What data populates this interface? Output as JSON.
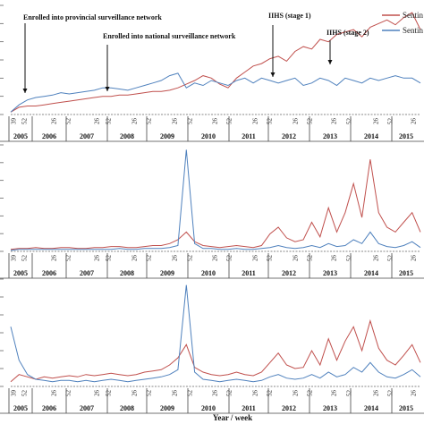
{
  "chart_data": {
    "type": "line",
    "xlabel": "Year / week",
    "years": [
      "2005",
      "2006",
      "2007",
      "2008",
      "2009",
      "2010",
      "2011",
      "2012",
      "2013",
      "2014",
      "2015"
    ],
    "week_tick_labels": [
      "39",
      "52",
      "26",
      "52",
      "26",
      "52",
      "26",
      "52",
      "26",
      "52",
      "26",
      "52",
      "26",
      "52",
      "26",
      "52",
      "26",
      "52",
      "26",
      "52",
      "26"
    ],
    "colors": {
      "red": "#c0504d",
      "blue": "#4f81bd"
    },
    "panels": [
      {
        "legend": [
          "Sentin",
          "Sentin"
        ],
        "annotations": [
          "Enrolled into provincial surveillance network",
          "Enrolled into national surveillance network",
          "IIHS (stage 1)",
          "IIHS (stage 2)"
        ],
        "series": [
          {
            "color": "red",
            "values": [
              2,
              6,
              7,
              7,
              8,
              9,
              10,
              11,
              12,
              13,
              14,
              15,
              15,
              16,
              16,
              17,
              18,
              19,
              19,
              20,
              22,
              25,
              28,
              32,
              30,
              25,
              22,
              30,
              35,
              40,
              42,
              46,
              48,
              44,
              52,
              56,
              54,
              62,
              60,
              66,
              68,
              70,
              64,
              72,
              75,
              78,
              74,
              80,
              84,
              70
            ]
          },
          {
            "color": "blue",
            "values": [
              2,
              8,
              12,
              14,
              15,
              16,
              18,
              17,
              18,
              19,
              20,
              22,
              22,
              21,
              20,
              22,
              24,
              26,
              28,
              32,
              34,
              22,
              26,
              24,
              28,
              26,
              24,
              28,
              30,
              26,
              30,
              28,
              26,
              28,
              30,
              24,
              26,
              30,
              28,
              24,
              30,
              28,
              26,
              30,
              28,
              30,
              32,
              30,
              30,
              26
            ]
          }
        ]
      },
      {
        "legend": [],
        "annotations": [],
        "series": [
          {
            "color": "red",
            "values": [
              2,
              3,
              3,
              4,
              3,
              3,
              4,
              4,
              3,
              3,
              4,
              4,
              5,
              5,
              4,
              4,
              5,
              6,
              6,
              8,
              12,
              20,
              10,
              6,
              5,
              4,
              5,
              6,
              5,
              4,
              6,
              18,
              25,
              14,
              10,
              12,
              30,
              15,
              45,
              20,
              40,
              70,
              35,
              95,
              40,
              25,
              20,
              30,
              40,
              20
            ]
          },
          {
            "color": "blue",
            "values": [
              1,
              2,
              2,
              2,
              2,
              2,
              2,
              2,
              2,
              2,
              2,
              2,
              2,
              3,
              2,
              2,
              3,
              3,
              3,
              4,
              6,
              105,
              8,
              3,
              3,
              2,
              2,
              3,
              2,
              2,
              3,
              4,
              6,
              4,
              3,
              4,
              6,
              4,
              8,
              5,
              6,
              12,
              8,
              20,
              8,
              5,
              4,
              6,
              10,
              4
            ]
          }
        ]
      },
      {
        "legend": [],
        "annotations": [],
        "series": [
          {
            "color": "red",
            "values": [
              4,
              10,
              8,
              6,
              8,
              7,
              8,
              9,
              8,
              10,
              9,
              10,
              11,
              10,
              9,
              10,
              12,
              13,
              14,
              18,
              24,
              35,
              16,
              12,
              10,
              9,
              10,
              12,
              10,
              9,
              12,
              20,
              28,
              18,
              15,
              16,
              30,
              18,
              40,
              22,
              38,
              50,
              30,
              55,
              32,
              22,
              18,
              26,
              35,
              20
            ]
          },
          {
            "color": "blue",
            "values": [
              50,
              22,
              10,
              6,
              5,
              4,
              5,
              5,
              4,
              5,
              4,
              5,
              6,
              5,
              4,
              5,
              6,
              7,
              8,
              10,
              14,
              85,
              12,
              6,
              5,
              4,
              5,
              6,
              5,
              4,
              5,
              8,
              10,
              7,
              6,
              7,
              10,
              7,
              12,
              8,
              10,
              16,
              12,
              20,
              12,
              8,
              7,
              10,
              14,
              8
            ]
          }
        ]
      }
    ]
  }
}
